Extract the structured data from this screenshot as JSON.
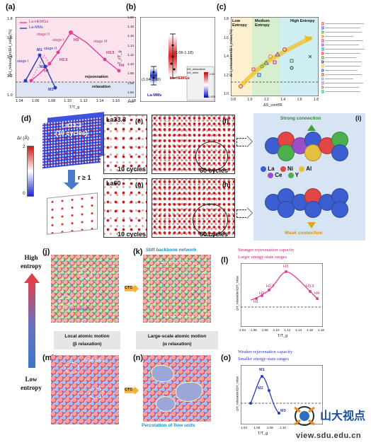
{
  "panel_labels": {
    "a": "(a)",
    "b": "(b)",
    "c": "(c)",
    "d": "(d)",
    "e": "(e)",
    "f": "(f)",
    "g": "(g)",
    "h": "(h)",
    "i": "(i)",
    "j": "(j)",
    "k": "(k)",
    "l": "(l)",
    "m": "(m)",
    "n": "(n)",
    "o": "(o)"
  },
  "panel_a": {
    "ylabel": "ΔH_relaxation/ΔH_relax(%)",
    "xlabel": "T/T_g",
    "legend": [
      "La-HEMGs",
      "La-MMs"
    ],
    "xticks": [
      "1.04",
      "1.06",
      "1.08",
      "1.10",
      "1.12",
      "1.14",
      "1.16",
      "1.18"
    ],
    "yticks": [
      "1.0",
      "1.2",
      "1.4",
      "1.6",
      "1.8"
    ],
    "labels": [
      "stage I",
      "stage II",
      "stage III",
      "stage I",
      "stage II",
      "M1",
      "M2",
      "M3",
      "H1",
      "H2.5",
      "H3",
      "H3.5",
      "H4"
    ],
    "rejuv": "rejuvenation",
    "relax": "relaxation"
  },
  "panel_b": {
    "ylabel": "T_r/T_g",
    "yticks": [
      "1.20",
      "1.18",
      "1.16",
      "1.14",
      "1.12",
      "1.10",
      "1.08",
      "1.06",
      "1.04",
      "1.02"
    ],
    "ann_top": "(1.06-1.18)",
    "ann_bot": "(1.04-1.08)",
    "cat_hemg": "La-HEMGs",
    "cat_mm": "La-MMs",
    "cbar_title": "ΔH_relaxation/ΔH_relax",
    "cbar_hi": "1.65",
    "cbar_lo": "0.925"
  },
  "panel_c": {
    "ylabel": "ΔH_relaxation/ΔH_relax(%)",
    "xlabel": "ΔS_conf/R",
    "regions": [
      "Low Entropy",
      "Medium Entropy",
      "High Entropy"
    ],
    "xticks": [
      "0.8",
      "1.0",
      "1.2",
      "1.4",
      "1.6",
      "1.8"
    ],
    "yticks": [
      "1.0",
      "1.2",
      "1.4",
      "1.6",
      "1.8"
    ]
  },
  "panel_d": {
    "label": "La33.3\n(10 cycles)",
    "cbar": "Δr (Å)",
    "cbar_hi": "2",
    "cbar_lo": "0",
    "cond": "r ≥ 1"
  },
  "panel_e": {
    "title": "La33.3",
    "cycles": "10 cycles"
  },
  "panel_f": {
    "cycles": "60 cycles"
  },
  "panel_g": {
    "title": "La60",
    "cycles": "10 cycles"
  },
  "panel_h": {
    "cycles": "60 cycles"
  },
  "panel_i": {
    "strong": "Strong connection",
    "weak": "Weak connection",
    "legend": [
      "La",
      "Ni",
      "Al",
      "Ce",
      "Y"
    ],
    "legend_colors": [
      "#3b5fd0",
      "#e04646",
      "#e8c040",
      "#9a4fc8",
      "#4cae4c"
    ]
  },
  "axis": {
    "high": "High\nentropy",
    "low": "Low\nentropy"
  },
  "panel_j": {
    "caption": "Hard matrix"
  },
  "panel_k": {
    "title": "Stiff backbone network"
  },
  "middle": {
    "left": "Local atomic motion\n(β relaxation)",
    "right": "Large-scale atomic motion\n(α relaxation)",
    "ctc": "CTC"
  },
  "panel_l": {
    "title1": "Stronger rejuvenation capacity",
    "title2": "Larger energy-state ranges",
    "xlabel": "T/T_g",
    "ylabel": "ΔH_relaxation/ΔH_relax",
    "points": [
      "H1",
      "H2",
      "H2.5",
      "H3",
      "H3.5",
      "H4"
    ],
    "xticks": [
      "1.04",
      "1.06",
      "1.08",
      "1.10",
      "1.12",
      "1.14",
      "1.16",
      "1.18"
    ]
  },
  "panel_m": {
    "caption": "Flow units"
  },
  "panel_n": {
    "caption": "Percolation of flow units"
  },
  "panel_o": {
    "title1": "Weaker rejuvenation capacity",
    "title2": "Smaller energy-state ranges",
    "xlabel": "T/T_g",
    "ylabel": "ΔH_relaxation/ΔH_relax",
    "points": [
      "M1",
      "M2",
      "M3"
    ],
    "xticks": [
      "1.04",
      "1.06",
      "1.08",
      "1.10"
    ]
  },
  "watermark": {
    "text": "山大视点",
    "url": "view.sdu.edu.cn"
  }
}
